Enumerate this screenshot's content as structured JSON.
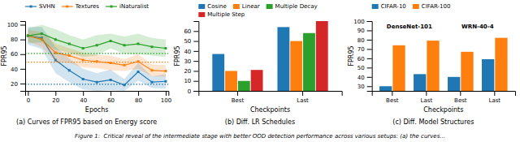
{
  "chart_data": [
    {
      "type": "line",
      "x": [
        0,
        10,
        20,
        30,
        40,
        50,
        60,
        70,
        80,
        90,
        100
      ],
      "series": [
        {
          "name": "SVHN",
          "values": [
            85,
            82,
            52,
            38,
            26,
            22,
            25,
            18,
            36,
            22,
            23
          ],
          "std": [
            12,
            15,
            18,
            16,
            14,
            12,
            14,
            8,
            12,
            8,
            10
          ],
          "marker": "square"
        },
        {
          "name": "Textures",
          "values": [
            85,
            80,
            62,
            58,
            52,
            50,
            48,
            45,
            50,
            38,
            37
          ],
          "std": [
            8,
            10,
            12,
            10,
            10,
            9,
            10,
            8,
            10,
            8,
            8
          ],
          "marker": "square"
        },
        {
          "name": "iNaturalist",
          "values": [
            85,
            88,
            80,
            74,
            68,
            72,
            78,
            72,
            74,
            70,
            68
          ],
          "std": [
            10,
            12,
            14,
            12,
            12,
            14,
            10,
            12,
            14,
            12,
            12
          ],
          "marker": "square"
        }
      ],
      "reference_lines": [
        {
          "series": "SVHN",
          "value": 19,
          "line_style": "dotted"
        },
        {
          "series": "Textures",
          "value": 49,
          "line_style": "dotted"
        },
        {
          "series": "iNaturalist",
          "value": 61,
          "line_style": "dotted"
        }
      ],
      "xlabel": "Epochs",
      "ylabel": "FPR95",
      "xlim": [
        -2,
        102
      ],
      "xticks": [
        0,
        20,
        40,
        60,
        80,
        100
      ],
      "ylim": [
        10,
        105
      ],
      "yticks": [
        20,
        40,
        60,
        80,
        100
      ],
      "legend": "top",
      "grid": false,
      "caption": "(a) Curves of FPR95 based on Energy score"
    },
    {
      "type": "bar",
      "categories": [
        "Best",
        "Last"
      ],
      "series": [
        {
          "name": "Cosine",
          "values": [
            37,
            64
          ]
        },
        {
          "name": "Linear",
          "values": [
            20,
            50
          ]
        },
        {
          "name": "Multiple Decay",
          "values": [
            10,
            58
          ]
        },
        {
          "name": "Multiple Step",
          "values": [
            21,
            70
          ]
        }
      ],
      "xlabel": "Checkpoints",
      "ylabel": "FPR95",
      "ylim": [
        0,
        70
      ],
      "yticks": [
        0,
        10,
        20,
        30,
        40,
        50,
        60
      ],
      "legend": "top",
      "grid": false,
      "caption": "(b) Diff. LR Schedules"
    },
    {
      "type": "bar",
      "categories": [
        "Best",
        "Last",
        "Best",
        "Last"
      ],
      "series": [
        {
          "name": "CIFAR-10",
          "values": [
            30,
            43,
            40,
            59
          ]
        },
        {
          "name": "CIFAR-100",
          "values": [
            74,
            79,
            67,
            82
          ]
        }
      ],
      "annotations": [
        "DenseNet-101",
        "WRN-40-4"
      ],
      "xlabel": "Checkpoints",
      "ylabel": "FPR95",
      "ylim": [
        25,
        100
      ],
      "yticks": [
        30,
        40,
        50,
        60,
        70,
        80,
        90,
        100
      ],
      "legend": "top",
      "grid": false,
      "caption": "(c) Diff. Model Structures"
    }
  ],
  "caption": "Figure 1:  Critical reveal of the intermediate stage with better OOD detection performance across various setups: (a) the curves..."
}
